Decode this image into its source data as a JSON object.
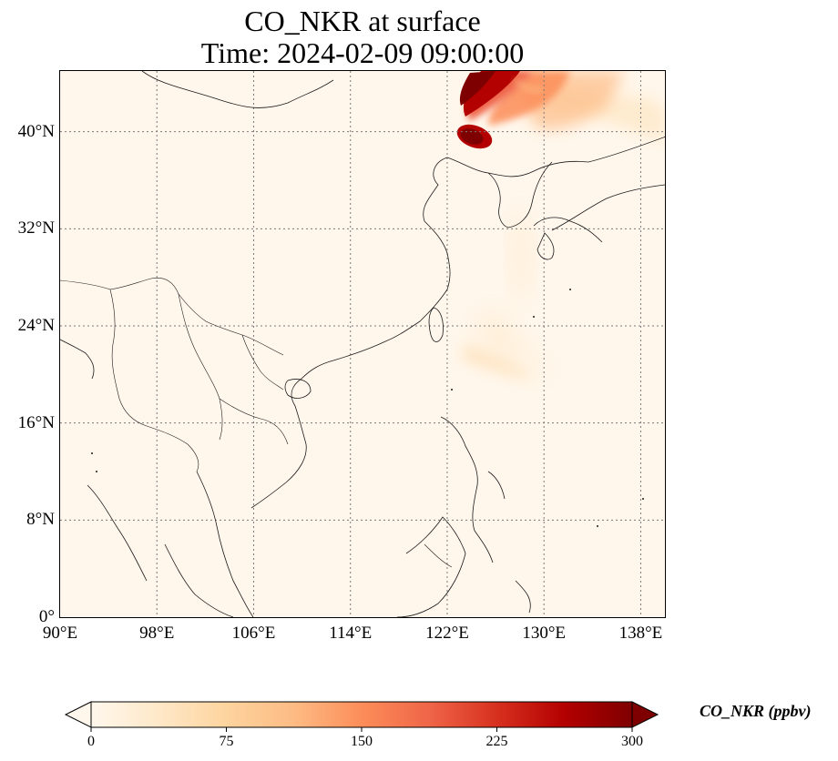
{
  "title_line1": "CO_NKR at surface",
  "title_line2": "Time: 2024-02-09 09:00:00",
  "map": {
    "extent": {
      "lon_min": 90,
      "lon_max": 140,
      "lat_min": 0,
      "lat_max": 45
    },
    "lon_ticks": [
      {
        "value": 90,
        "label": "90°E"
      },
      {
        "value": 98,
        "label": "98°E"
      },
      {
        "value": 106,
        "label": "106°E"
      },
      {
        "value": 114,
        "label": "114°E"
      },
      {
        "value": 122,
        "label": "122°E"
      },
      {
        "value": 130,
        "label": "130°E"
      },
      {
        "value": 138,
        "label": "138°E"
      }
    ],
    "lat_ticks": [
      {
        "value": 0,
        "label": "0°"
      },
      {
        "value": 8,
        "label": "8°N"
      },
      {
        "value": 16,
        "label": "16°N"
      },
      {
        "value": 24,
        "label": "24°N"
      },
      {
        "value": 32,
        "label": "32°N"
      },
      {
        "value": 40,
        "label": "40°N"
      }
    ],
    "gridlines": true,
    "features": [
      "coastlines",
      "country-borders"
    ]
  },
  "colorbar": {
    "title": "CO_NKR (ppbv)",
    "colormap": "OrRd",
    "range": [
      0,
      300
    ],
    "extend": "both",
    "tick_labels": [
      {
        "value": 0,
        "label": "0"
      },
      {
        "value": 75,
        "label": "75"
      },
      {
        "value": 150,
        "label": "150"
      },
      {
        "value": 225,
        "label": "225"
      },
      {
        "value": 300,
        "label": "300"
      }
    ],
    "colors": [
      "#fff7ec",
      "#fee8c8",
      "#fdd49e",
      "#fdbb84",
      "#fc8d59",
      "#ef6548",
      "#d7301f",
      "#b30000",
      "#7f0000"
    ]
  },
  "plumes": [
    {
      "name": "north-korea-core",
      "lon": 125.7,
      "lat": 43.0,
      "value": 300
    },
    {
      "name": "pyongyang-hotspot",
      "lon": 125.2,
      "lat": 39.8,
      "value": 290
    },
    {
      "name": "northeast-band",
      "lon": 128.0,
      "lat": 43.5,
      "value": 150
    },
    {
      "name": "pacific-outflow",
      "lon": 127.5,
      "lat": 24.0,
      "value": 20
    }
  ]
}
